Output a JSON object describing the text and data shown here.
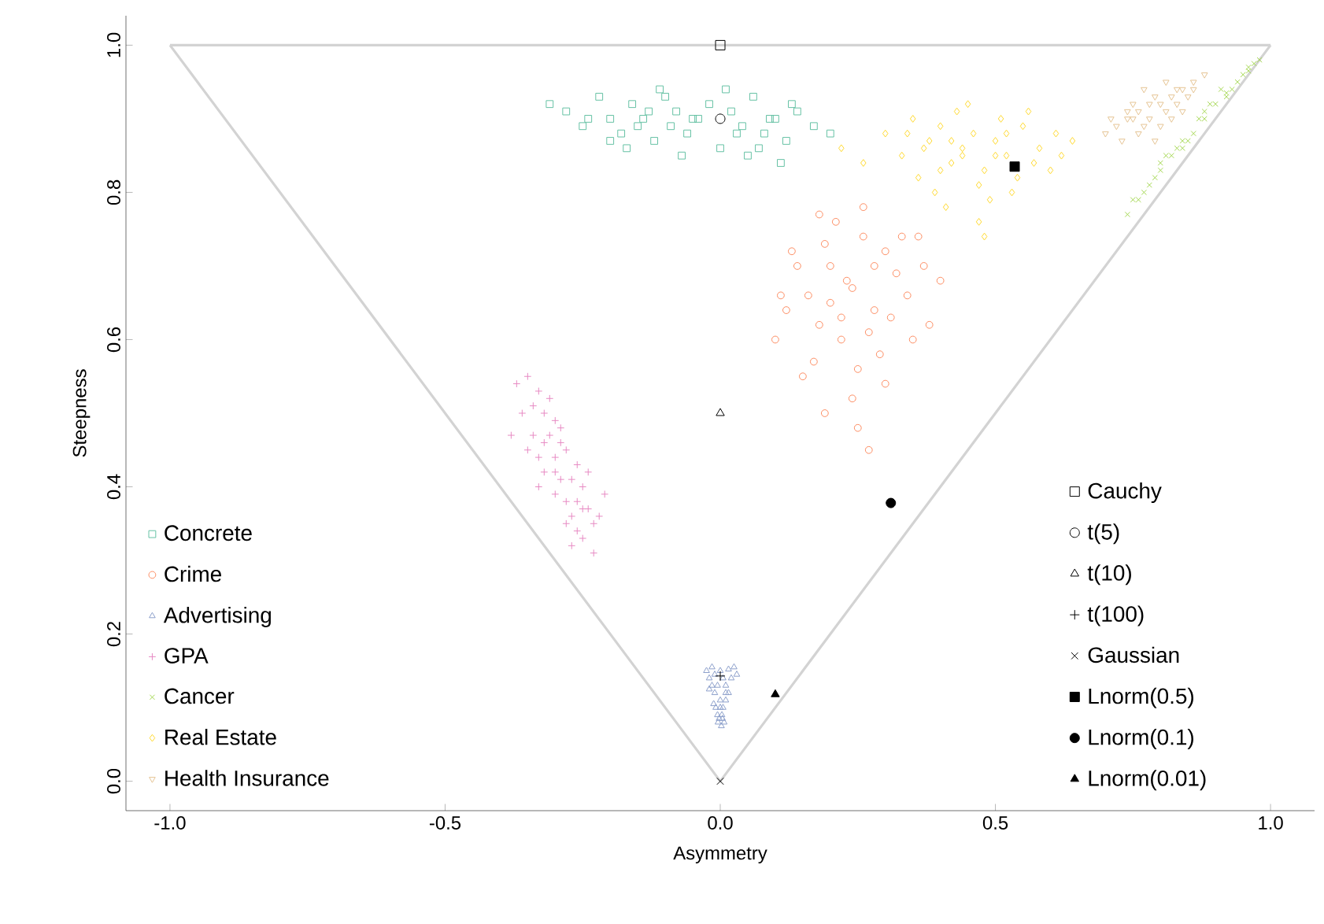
{
  "chart_data": {
    "type": "scatter",
    "xlabel": "Asymmetry",
    "ylabel": "Steepness",
    "xlim": [
      -1.08,
      1.08
    ],
    "ylim": [
      -0.04,
      1.04
    ],
    "xticks": [
      {
        "value": -1,
        "label": "-1.0"
      },
      {
        "value": -0.5,
        "label": "-0.5"
      },
      {
        "value": 0,
        "label": "0.0"
      },
      {
        "value": 0.5,
        "label": "0.5"
      },
      {
        "value": 1,
        "label": "1.0"
      }
    ],
    "yticks": [
      {
        "value": 0,
        "label": "0.0"
      },
      {
        "value": 0.2,
        "label": "0.2"
      },
      {
        "value": 0.4,
        "label": "0.4"
      },
      {
        "value": 0.6,
        "label": "0.6"
      },
      {
        "value": 0.8,
        "label": "0.8"
      },
      {
        "value": 1,
        "label": "1.0"
      }
    ],
    "grid": false,
    "legend": "bottom left",
    "series": [
      {
        "type": "line",
        "color": "#d3d3d3",
        "marker": "none",
        "line_style": "solid",
        "x": [
          -1,
          0,
          1
        ],
        "values": [
          1,
          0,
          1
        ]
      },
      {
        "type": "line",
        "color": "#d3d3d3",
        "marker": "none",
        "line_style": "solid",
        "x": [
          -1,
          1
        ],
        "values": [
          1,
          1
        ]
      },
      {
        "name": "Concrete",
        "color": "#66c2a5",
        "marker": "square",
        "x": [
          -0.31,
          -0.28,
          -0.25,
          -0.22,
          -0.2,
          -0.18,
          -0.16,
          -0.14,
          -0.12,
          -0.1,
          -0.08,
          -0.06,
          -0.04,
          -0.02,
          0,
          0.02,
          0.04,
          0.06,
          0.08,
          0.1,
          0.12,
          0.14,
          0.17,
          0.2,
          -0.24,
          -0.17,
          -0.11,
          -0.05,
          0.01,
          0.07,
          0.13,
          -0.15,
          -0.07,
          0.03,
          0.09,
          -0.2,
          -0.09,
          0.05,
          -0.13,
          0.11
        ],
        "values": [
          0.92,
          0.91,
          0.89,
          0.93,
          0.9,
          0.88,
          0.92,
          0.9,
          0.87,
          0.93,
          0.91,
          0.88,
          0.9,
          0.92,
          0.86,
          0.91,
          0.89,
          0.93,
          0.88,
          0.9,
          0.87,
          0.91,
          0.89,
          0.88,
          0.9,
          0.86,
          0.94,
          0.9,
          0.94,
          0.86,
          0.92,
          0.89,
          0.85,
          0.88,
          0.9,
          0.87,
          0.89,
          0.85,
          0.91,
          0.84
        ]
      },
      {
        "name": "Crime",
        "color": "#fc8d62",
        "marker": "circle",
        "x": [
          0.24,
          0.2,
          0.28,
          0.16,
          0.32,
          0.22,
          0.26,
          0.18,
          0.3,
          0.14,
          0.34,
          0.25,
          0.21,
          0.29,
          0.12,
          0.37,
          0.23,
          0.27,
          0.19,
          0.31,
          0.1,
          0.4,
          0.24,
          0.17,
          0.33,
          0.26,
          0.2,
          0.28,
          0.15,
          0.35,
          0.22,
          0.3,
          0.13,
          0.25,
          0.19,
          0.38,
          0.18,
          0.11,
          0.36,
          0.27
        ],
        "values": [
          0.67,
          0.7,
          0.64,
          0.66,
          0.69,
          0.6,
          0.74,
          0.62,
          0.72,
          0.7,
          0.66,
          0.56,
          0.76,
          0.58,
          0.64,
          0.7,
          0.68,
          0.61,
          0.73,
          0.63,
          0.6,
          0.68,
          0.52,
          0.57,
          0.74,
          0.78,
          0.65,
          0.7,
          0.55,
          0.6,
          0.63,
          0.54,
          0.72,
          0.48,
          0.5,
          0.62,
          0.77,
          0.66,
          0.74,
          0.45
        ]
      },
      {
        "name": "Advertising",
        "color": "#8da0cb",
        "marker": "triangle",
        "x": [
          -0.025,
          -0.015,
          0,
          0.015,
          0.03,
          -0.02,
          -0.01,
          0.005,
          0.02,
          -0.015,
          -0.005,
          0.01,
          0.015,
          -0.01,
          0,
          0.01,
          -0.008,
          0.005,
          -0.005,
          0.003,
          -0.002,
          0.007,
          -0.004,
          0.002,
          0.025,
          -0.02,
          0.01,
          -0.012,
          0,
          0.004
        ],
        "values": [
          0.15,
          0.155,
          0.15,
          0.152,
          0.145,
          0.14,
          0.145,
          0.14,
          0.14,
          0.13,
          0.13,
          0.13,
          0.12,
          0.12,
          0.11,
          0.11,
          0.1,
          0.1,
          0.09,
          0.09,
          0.085,
          0.08,
          0.08,
          0.075,
          0.155,
          0.125,
          0.12,
          0.105,
          0.1,
          0.085
        ]
      },
      {
        "name": "GPA",
        "color": "#e78ac3",
        "marker": "plus",
        "x": [
          -0.37,
          -0.35,
          -0.33,
          -0.36,
          -0.34,
          -0.32,
          -0.3,
          -0.34,
          -0.31,
          -0.29,
          -0.33,
          -0.3,
          -0.28,
          -0.26,
          -0.32,
          -0.29,
          -0.27,
          -0.3,
          -0.28,
          -0.25,
          -0.27,
          -0.24,
          -0.26,
          -0.23,
          -0.25,
          -0.22,
          -0.38,
          -0.31,
          -0.24,
          -0.35,
          -0.29,
          -0.21,
          -0.27,
          -0.33,
          -0.26,
          -0.3,
          -0.32,
          -0.28,
          -0.25,
          -0.23
        ],
        "values": [
          0.54,
          0.55,
          0.53,
          0.5,
          0.51,
          0.5,
          0.49,
          0.47,
          0.47,
          0.46,
          0.44,
          0.44,
          0.45,
          0.43,
          0.42,
          0.41,
          0.41,
          0.39,
          0.38,
          0.4,
          0.36,
          0.37,
          0.34,
          0.35,
          0.33,
          0.36,
          0.47,
          0.52,
          0.42,
          0.45,
          0.48,
          0.39,
          0.32,
          0.4,
          0.38,
          0.42,
          0.46,
          0.35,
          0.37,
          0.31
        ]
      },
      {
        "name": "Cancer",
        "color": "#a6d854",
        "marker": "cross",
        "x": [
          0.74,
          0.76,
          0.78,
          0.8,
          0.82,
          0.84,
          0.86,
          0.88,
          0.9,
          0.92,
          0.94,
          0.96,
          0.98,
          0.75,
          0.79,
          0.83,
          0.87,
          0.91,
          0.95,
          0.97,
          0.77,
          0.81,
          0.85,
          0.89,
          0.93,
          0.8,
          0.84,
          0.88,
          0.92,
          0.96
        ],
        "values": [
          0.77,
          0.79,
          0.81,
          0.83,
          0.85,
          0.86,
          0.88,
          0.9,
          0.92,
          0.93,
          0.95,
          0.97,
          0.98,
          0.79,
          0.82,
          0.86,
          0.9,
          0.94,
          0.96,
          0.975,
          0.8,
          0.85,
          0.87,
          0.92,
          0.94,
          0.84,
          0.87,
          0.91,
          0.935,
          0.965
        ]
      },
      {
        "name": "Real Estate",
        "color": "#ffd92f",
        "marker": "diamond",
        "x": [
          0.22,
          0.26,
          0.3,
          0.33,
          0.36,
          0.38,
          0.4,
          0.42,
          0.44,
          0.46,
          0.48,
          0.5,
          0.52,
          0.55,
          0.58,
          0.61,
          0.64,
          0.35,
          0.39,
          0.43,
          0.47,
          0.51,
          0.54,
          0.57,
          0.6,
          0.41,
          0.45,
          0.49,
          0.53,
          0.37,
          0.44,
          0.5,
          0.56,
          0.47,
          0.4,
          0.34,
          0.62,
          0.42,
          0.52,
          0.48
        ],
        "values": [
          0.86,
          0.84,
          0.88,
          0.85,
          0.82,
          0.87,
          0.89,
          0.84,
          0.86,
          0.88,
          0.83,
          0.87,
          0.85,
          0.89,
          0.86,
          0.88,
          0.87,
          0.9,
          0.8,
          0.91,
          0.81,
          0.9,
          0.82,
          0.84,
          0.83,
          0.78,
          0.92,
          0.79,
          0.8,
          0.86,
          0.85,
          0.85,
          0.91,
          0.76,
          0.83,
          0.88,
          0.85,
          0.87,
          0.88,
          0.74
        ]
      },
      {
        "name": "Health Insurance",
        "color": "#e5c494",
        "marker": "triangle_down",
        "x": [
          0.7,
          0.72,
          0.74,
          0.76,
          0.78,
          0.8,
          0.82,
          0.84,
          0.86,
          0.88,
          0.73,
          0.75,
          0.77,
          0.79,
          0.81,
          0.83,
          0.85,
          0.71,
          0.76,
          0.8,
          0.84,
          0.78,
          0.82,
          0.74,
          0.86,
          0.79,
          0.81,
          0.77,
          0.83,
          0.75
        ],
        "values": [
          0.88,
          0.89,
          0.9,
          0.91,
          0.9,
          0.92,
          0.93,
          0.94,
          0.95,
          0.96,
          0.87,
          0.92,
          0.89,
          0.93,
          0.91,
          0.94,
          0.93,
          0.9,
          0.88,
          0.89,
          0.91,
          0.92,
          0.9,
          0.91,
          0.94,
          0.87,
          0.95,
          0.94,
          0.92,
          0.9
        ]
      },
      {
        "name": "Cauchy",
        "color": "#000000",
        "marker": "square",
        "x": [
          0
        ],
        "values": [
          1
        ]
      },
      {
        "name": "t(5)",
        "color": "#000000",
        "marker": "circle",
        "x": [
          0
        ],
        "values": [
          0.9
        ]
      },
      {
        "name": "t(10)",
        "color": "#000000",
        "marker": "triangle",
        "x": [
          0
        ],
        "values": [
          0.5
        ]
      },
      {
        "name": "t(100)",
        "color": "#000000",
        "marker": "plus",
        "x": [
          0
        ],
        "values": [
          0.143
        ]
      },
      {
        "name": "Gaussian",
        "color": "#000000",
        "marker": "cross",
        "x": [
          0
        ],
        "values": [
          0
        ]
      },
      {
        "name": "Lnorm(0.5)",
        "color": "#000000",
        "marker": "square",
        "x": [
          0.535
        ],
        "values": [
          0.835
        ]
      },
      {
        "name": "Lnorm(0.1)",
        "color": "#000000",
        "marker": "circle",
        "x": [
          0.31
        ],
        "values": [
          0.378
        ]
      },
      {
        "name": "Lnorm(0.01)",
        "color": "#000000",
        "marker": "triangle",
        "x": [
          0.1
        ],
        "values": [
          0.118
        ]
      }
    ]
  }
}
